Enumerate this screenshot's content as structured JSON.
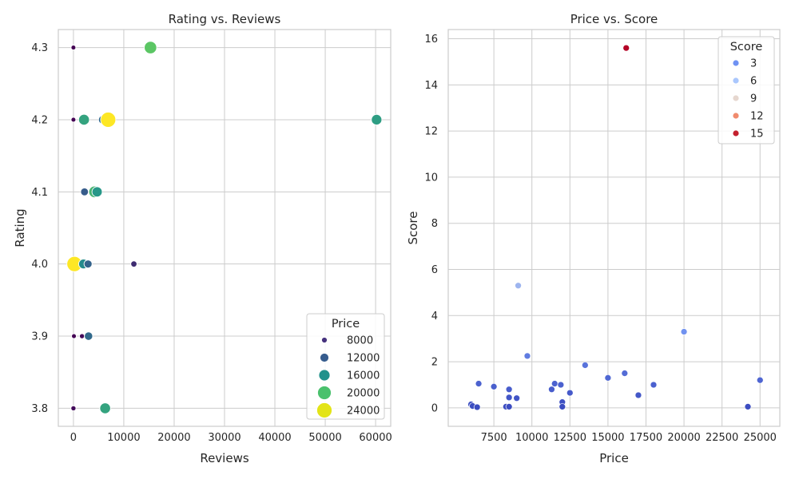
{
  "chart_data": [
    {
      "type": "scatter",
      "title": "Rating vs. Reviews",
      "xlabel": "Reviews",
      "ylabel": "Rating",
      "xlim": [
        -3000,
        63000
      ],
      "ylim": [
        3.775,
        4.325
      ],
      "xticks": [
        0,
        10000,
        20000,
        30000,
        40000,
        50000,
        60000
      ],
      "xtick_labels": [
        "0",
        "10000",
        "20000",
        "30000",
        "40000",
        "50000",
        "60000"
      ],
      "yticks": [
        3.8,
        3.9,
        4.0,
        4.1,
        4.2,
        4.3
      ],
      "ytick_labels": [
        "3.8",
        "3.9",
        "4.0",
        "4.1",
        "4.2",
        "4.3"
      ],
      "grid": true,
      "hue_size": "Price",
      "legend": {
        "title": "Price",
        "position": "lower-right",
        "entries": [
          {
            "label": "8000",
            "value": 8000,
            "color": "#46327e"
          },
          {
            "label": "12000",
            "value": 12000,
            "color": "#365c8d"
          },
          {
            "label": "16000",
            "value": 16000,
            "color": "#21918c"
          },
          {
            "label": "20000",
            "value": 20000,
            "color": "#4ac16d"
          },
          {
            "label": "24000",
            "value": 24000,
            "color": "#e3e418"
          }
        ]
      },
      "points": [
        {
          "x": 0,
          "y": 4.3,
          "price": 6000
        },
        {
          "x": 15300,
          "y": 4.3,
          "price": 20000
        },
        {
          "x": 0,
          "y": 4.2,
          "price": 6000
        },
        {
          "x": 2100,
          "y": 4.2,
          "price": 17000
        },
        {
          "x": 5800,
          "y": 4.2,
          "price": 12500
        },
        {
          "x": 6900,
          "y": 4.2,
          "price": 25000
        },
        {
          "x": 60200,
          "y": 4.2,
          "price": 16500
        },
        {
          "x": 2200,
          "y": 4.1,
          "price": 11500
        },
        {
          "x": 4200,
          "y": 4.1,
          "price": 18500
        },
        {
          "x": 4700,
          "y": 4.1,
          "price": 16000
        },
        {
          "x": 200,
          "y": 4.0,
          "price": 25000
        },
        {
          "x": 2000,
          "y": 4.0,
          "price": 15000
        },
        {
          "x": 2900,
          "y": 4.0,
          "price": 12000
        },
        {
          "x": 12000,
          "y": 4.0,
          "price": 8500
        },
        {
          "x": 100,
          "y": 3.9,
          "price": 6000
        },
        {
          "x": 1700,
          "y": 3.9,
          "price": 6500
        },
        {
          "x": 3000,
          "y": 3.9,
          "price": 12500
        },
        {
          "x": 0,
          "y": 3.8,
          "price": 6500
        },
        {
          "x": 5800,
          "y": 3.8,
          "price": 9000
        },
        {
          "x": 6300,
          "y": 3.8,
          "price": 17000
        }
      ]
    },
    {
      "type": "scatter",
      "title": "Price vs. Score",
      "xlabel": "Price",
      "ylabel": "Score",
      "xlim": [
        4500,
        26300
      ],
      "ylim": [
        -0.8,
        16.4
      ],
      "xticks": [
        7500,
        10000,
        12500,
        15000,
        17500,
        20000,
        22500,
        25000
      ],
      "xtick_labels": [
        "7500",
        "10000",
        "12500",
        "15000",
        "17500",
        "20000",
        "22500",
        "25000"
      ],
      "yticks": [
        0,
        2,
        4,
        6,
        8,
        10,
        12,
        14,
        16
      ],
      "ytick_labels": [
        "0",
        "2",
        "4",
        "6",
        "8",
        "10",
        "12",
        "14",
        "16"
      ],
      "grid": true,
      "hue": "Score",
      "legend": {
        "title": "Score",
        "position": "top-right",
        "entries": [
          {
            "label": "3",
            "value": 3,
            "color": "#6f92f3"
          },
          {
            "label": "6",
            "value": 6,
            "color": "#aac7fd"
          },
          {
            "label": "9",
            "value": 9,
            "color": "#e6d7cf"
          },
          {
            "label": "12",
            "value": 12,
            "color": "#f08b6e"
          },
          {
            "label": "15",
            "value": 15,
            "color": "#c3202e"
          }
        ]
      },
      "points": [
        {
          "x": 16200,
          "y": 15.6
        },
        {
          "x": 9100,
          "y": 5.3
        },
        {
          "x": 20000,
          "y": 3.3
        },
        {
          "x": 9700,
          "y": 2.25
        },
        {
          "x": 13500,
          "y": 1.85
        },
        {
          "x": 16100,
          "y": 1.5
        },
        {
          "x": 15000,
          "y": 1.3
        },
        {
          "x": 25000,
          "y": 1.2
        },
        {
          "x": 6500,
          "y": 1.05
        },
        {
          "x": 11500,
          "y": 1.05
        },
        {
          "x": 11900,
          "y": 1.0
        },
        {
          "x": 18000,
          "y": 1.0
        },
        {
          "x": 7500,
          "y": 0.92
        },
        {
          "x": 8500,
          "y": 0.8
        },
        {
          "x": 11300,
          "y": 0.8
        },
        {
          "x": 12500,
          "y": 0.65
        },
        {
          "x": 17000,
          "y": 0.55
        },
        {
          "x": 8500,
          "y": 0.45
        },
        {
          "x": 9000,
          "y": 0.42
        },
        {
          "x": 12000,
          "y": 0.25
        },
        {
          "x": 6000,
          "y": 0.15
        },
        {
          "x": 6100,
          "y": 0.08
        },
        {
          "x": 6400,
          "y": 0.03
        },
        {
          "x": 8300,
          "y": 0.05
        },
        {
          "x": 8500,
          "y": 0.05
        },
        {
          "x": 12000,
          "y": 0.05
        },
        {
          "x": 24200,
          "y": 0.05
        }
      ]
    }
  ]
}
